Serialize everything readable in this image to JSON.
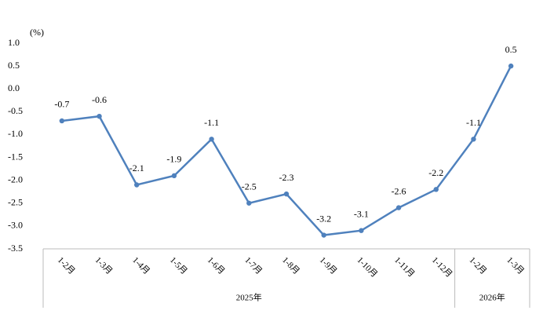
{
  "chart_data": {
    "type": "line",
    "y_unit_label": "(%)",
    "category_groups": [
      {
        "name": "2025年",
        "categories": [
          "1-2月",
          "1-3月",
          "1-4月",
          "1-5月",
          "1-6月",
          "1-7月",
          "1-8月",
          "1-9月",
          "1-10月",
          "1-11月",
          "1-12月"
        ]
      },
      {
        "name": "2026年",
        "categories": [
          "1-2月",
          "1-3月"
        ]
      }
    ],
    "series": [
      {
        "color": "#4f81bd",
        "values": [
          -0.7,
          -0.6,
          -2.1,
          -1.9,
          -1.1,
          -2.5,
          -2.3,
          -3.2,
          -3.1,
          -2.6,
          -2.2,
          -1.1,
          0.5
        ]
      }
    ],
    "ylim": [
      -3.5,
      1.0
    ],
    "yticks": [
      {
        "value": 1.0,
        "label": "1.0"
      },
      0.5,
      {
        "value": 0.0,
        "label": "0.0"
      },
      -0.5,
      {
        "value": -1.0,
        "label": "-1.0"
      },
      -1.5,
      {
        "value": -2.0,
        "label": "-2.0"
      },
      -2.5,
      {
        "value": -3.0,
        "label": "-3.0"
      },
      -3.5
    ],
    "grid": false,
    "data_labels": true
  }
}
